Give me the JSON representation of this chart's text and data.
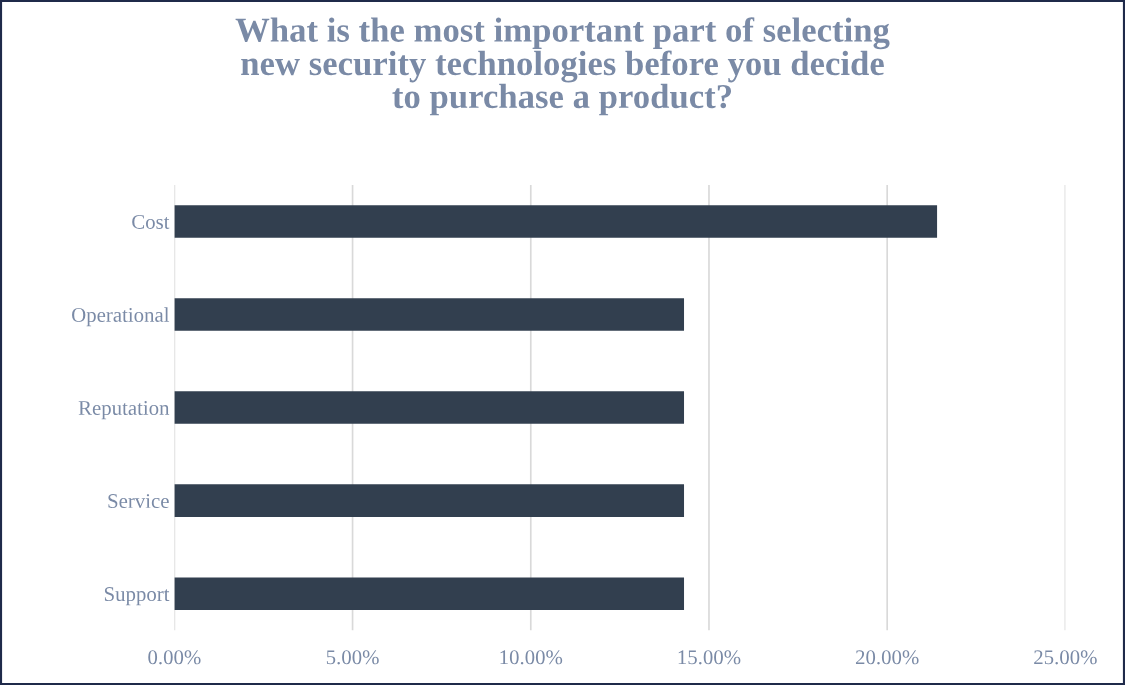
{
  "chart_data": {
    "type": "bar",
    "orientation": "horizontal",
    "title": "What is the most important part of selecting\nnew security technologies before you decide\nto purchase a product?",
    "categories": [
      "Cost",
      "Operational",
      "Reputation",
      "Service",
      "Support"
    ],
    "values": [
      21.4,
      14.3,
      14.3,
      14.3,
      14.3
    ],
    "color": "#323f4f",
    "xlim": [
      0,
      25
    ],
    "xticks": [
      {
        "value": 0,
        "label": "0.00%"
      },
      {
        "value": 5,
        "label": "5.00%"
      },
      {
        "value": 10,
        "label": "10.00%"
      },
      {
        "value": 15,
        "label": "15.00%"
      },
      {
        "value": 20,
        "label": "20.00%"
      },
      {
        "value": 25,
        "label": "25.00%"
      }
    ],
    "grid": "x",
    "legend": false
  }
}
